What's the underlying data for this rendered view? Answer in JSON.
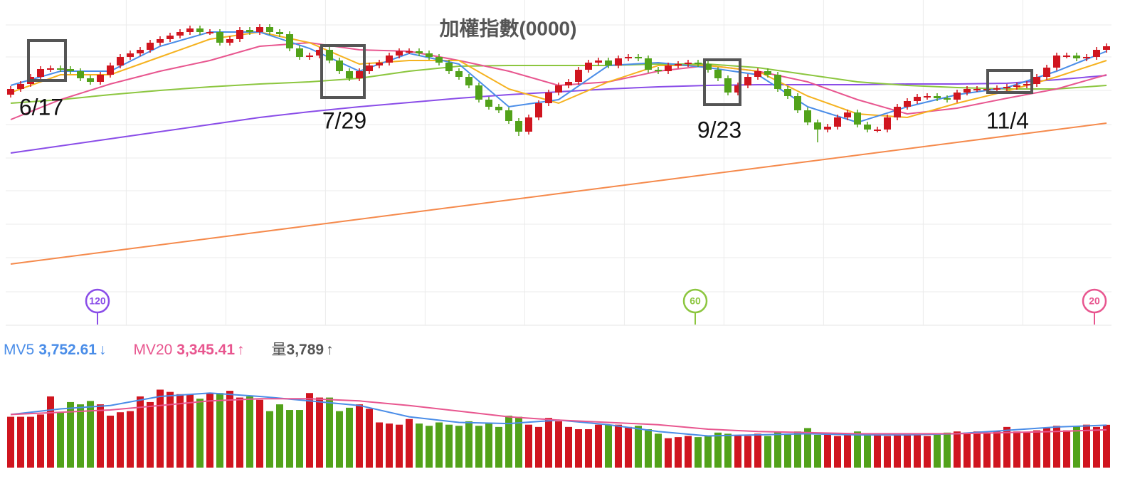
{
  "chart_data": [
    {
      "type": "candlestick",
      "title": "加權指數(0000)",
      "open": [
        322,
        330,
        337,
        347,
        358,
        359,
        358,
        355,
        345,
        340,
        350,
        363,
        375,
        380,
        385,
        395,
        400,
        405,
        410,
        415,
        410,
        410,
        395,
        400,
        413,
        410,
        417,
        410,
        407,
        387,
        375,
        377,
        385,
        370,
        355,
        345,
        355,
        363,
        367,
        377,
        383,
        383,
        380,
        375,
        367,
        355,
        347,
        335,
        315,
        305,
        300,
        285,
        270,
        290,
        310,
        325,
        335,
        340,
        357,
        367,
        370,
        363,
        373,
        375,
        373,
        357,
        355,
        363,
        365,
        367,
        365,
        357,
        345,
        325,
        335,
        347,
        355,
        350,
        330,
        320,
        300,
        283,
        273,
        277,
        290,
        297,
        280,
        273,
        273,
        290,
        305,
        313,
        319,
        320,
        317,
        315,
        325,
        330,
        330,
        330,
        331,
        333,
        335,
        337,
        347,
        360,
        377,
        377,
        373,
        375,
        385
      ],
      "high": [
        334,
        341,
        351,
        362,
        363,
        363,
        362,
        359,
        349,
        354,
        367,
        379,
        384,
        389,
        399,
        404,
        409,
        414,
        419,
        419,
        414,
        414,
        404,
        417,
        417,
        421,
        421,
        414,
        411,
        391,
        381,
        389,
        389,
        374,
        359,
        359,
        367,
        371,
        381,
        387,
        387,
        387,
        384,
        379,
        371,
        359,
        351,
        339,
        319,
        309,
        304,
        289,
        294,
        314,
        329,
        339,
        344,
        361,
        371,
        374,
        374,
        377,
        379,
        379,
        377,
        361,
        367,
        369,
        371,
        371,
        369,
        361,
        349,
        339,
        351,
        359,
        359,
        354,
        334,
        324,
        304,
        287,
        281,
        294,
        301,
        301,
        284,
        277,
        294,
        309,
        317,
        323,
        324,
        324,
        321,
        329,
        334,
        334,
        334,
        335,
        337,
        339,
        341,
        351,
        364,
        381,
        381,
        381,
        379,
        389,
        394
      ],
      "low": [
        318,
        326,
        333,
        343,
        354,
        354,
        351,
        341,
        336,
        336,
        346,
        359,
        371,
        376,
        381,
        391,
        396,
        401,
        406,
        406,
        406,
        391,
        391,
        396,
        406,
        406,
        406,
        403,
        383,
        371,
        371,
        373,
        366,
        351,
        341,
        341,
        351,
        359,
        363,
        373,
        379,
        376,
        371,
        363,
        351,
        343,
        331,
        311,
        301,
        296,
        281,
        264,
        266,
        286,
        306,
        321,
        331,
        336,
        353,
        363,
        359,
        359,
        369,
        369,
        353,
        351,
        351,
        359,
        361,
        361,
        353,
        341,
        321,
        321,
        331,
        343,
        346,
        326,
        316,
        296,
        279,
        255,
        269,
        273,
        286,
        276,
        269,
        269,
        269,
        286,
        301,
        309,
        315,
        313,
        311,
        311,
        321,
        326,
        326,
        326,
        327,
        329,
        331,
        333,
        343,
        356,
        373,
        369,
        369,
        371,
        381
      ],
      "close": [
        330,
        337,
        347,
        358,
        359,
        358,
        355,
        345,
        340,
        350,
        363,
        375,
        380,
        385,
        395,
        400,
        405,
        410,
        415,
        410,
        410,
        395,
        400,
        413,
        410,
        417,
        410,
        407,
        387,
        375,
        377,
        385,
        370,
        355,
        345,
        355,
        363,
        367,
        377,
        383,
        383,
        380,
        375,
        367,
        355,
        347,
        335,
        315,
        305,
        300,
        285,
        270,
        290,
        310,
        325,
        335,
        340,
        357,
        367,
        370,
        363,
        373,
        375,
        373,
        357,
        355,
        363,
        365,
        367,
        365,
        357,
        345,
        325,
        335,
        347,
        355,
        350,
        330,
        320,
        300,
        283,
        273,
        277,
        290,
        297,
        280,
        273,
        273,
        290,
        305,
        313,
        319,
        320,
        317,
        315,
        325,
        330,
        330,
        330,
        331,
        333,
        335,
        337,
        347,
        360,
        377,
        377,
        373,
        375,
        385,
        390
      ],
      "up_color": "#d0151f",
      "down_color": "#52a21a",
      "xlim": [
        -0.5,
        110.5
      ],
      "ylim": [
        0,
        455
      ],
      "ygrid": [
        420,
        375,
        328,
        280,
        233,
        187,
        140,
        93,
        45
      ],
      "xgrid": [
        11.6,
        21.6,
        31.6,
        41.6,
        51.6,
        61.6,
        71.6,
        81.6,
        91.6,
        101.6
      ],
      "ma_x": [
        0,
        5,
        10,
        15,
        20,
        25,
        30,
        35,
        40,
        45,
        50,
        55,
        60,
        65,
        70,
        75,
        80,
        85,
        90,
        95,
        100,
        105,
        110
      ],
      "series": [
        {
          "color": "#f58a4c",
          "values": [
            84,
            93,
            102,
            111,
            120,
            129,
            138,
            147,
            156,
            165,
            174,
            183,
            192,
            201,
            210,
            219,
            228,
            237,
            246,
            255,
            264,
            273,
            282
          ]
        },
        {
          "color": "#8a4de8",
          "values": [
            240,
            250,
            260,
            270,
            280,
            290,
            298,
            305,
            311,
            317,
            322,
            326,
            330,
            333,
            335,
            336,
            336,
            336,
            337,
            337,
            338,
            343,
            349
          ]
        },
        {
          "color": "#8cc63f",
          "values": [
            310,
            315,
            322,
            328,
            333,
            337,
            340,
            345,
            355,
            362,
            363,
            363,
            363,
            365,
            365,
            360,
            350,
            340,
            335,
            332,
            330,
            330,
            335
          ]
        },
        {
          "color": "#e8568f",
          "values": [
            287,
            315,
            337,
            355,
            370,
            390,
            395,
            385,
            383,
            370,
            355,
            335,
            340,
            355,
            363,
            355,
            340,
            315,
            295,
            303,
            317,
            330,
            350
          ]
        },
        {
          "color": "#f5b21f",
          "values": [
            325,
            350,
            350,
            375,
            400,
            410,
            395,
            365,
            370,
            370,
            330,
            310,
            340,
            363,
            363,
            355,
            320,
            295,
            290,
            310,
            327,
            347,
            370
          ]
        },
        {
          "color": "#4a8de8",
          "values": [
            335,
            355,
            355,
            390,
            410,
            410,
            387,
            355,
            380,
            365,
            305,
            315,
            363,
            367,
            360,
            350,
            305,
            283,
            305,
            322,
            332,
            355,
            383
          ]
        }
      ],
      "annotations": [
        "6/17",
        "7/29",
        "9/23",
        "11/4"
      ],
      "period_markers": [
        {
          "label": 120,
          "color": "#8a4de8"
        },
        {
          "label": 60,
          "color": "#8cc63f"
        },
        {
          "label": 20,
          "color": "#e8568f"
        }
      ]
    },
    {
      "type": "volume",
      "values": [
        4500,
        4500,
        4500,
        4700,
        6300,
        4900,
        5800,
        5600,
        5900,
        5600,
        4600,
        4900,
        5000,
        6300,
        5800,
        6900,
        6700,
        6500,
        6500,
        6100,
        6600,
        6600,
        6800,
        6200,
        6300,
        6000,
        5000,
        5600,
        5100,
        5100,
        6600,
        6200,
        6200,
        5000,
        5300,
        5600,
        5200,
        4000,
        3900,
        3800,
        4300,
        3900,
        3700,
        4000,
        3800,
        3700,
        4100,
        3700,
        3900,
        3600,
        4600,
        4500,
        3800,
        3600,
        4400,
        4100,
        3600,
        3400,
        3400,
        3800,
        3800,
        3800,
        3600,
        3700,
        3400,
        3000,
        2600,
        2700,
        2800,
        2700,
        2800,
        3100,
        3000,
        2900,
        2800,
        3000,
        2800,
        3200,
        3000,
        3200,
        3500,
        2900,
        3000,
        2800,
        2900,
        3200,
        3000,
        3000,
        2800,
        3000,
        3000,
        2900,
        2800,
        3000,
        3100,
        3200,
        3100,
        3200,
        3100,
        3200,
        3600,
        3200,
        3100,
        3300,
        3500,
        3700,
        3300,
        3700,
        3800,
        3600,
        3789
      ],
      "ylim": [
        0,
        8000
      ],
      "ma_x": [
        0,
        5,
        10,
        15,
        20,
        25,
        30,
        35,
        40,
        45,
        50,
        55,
        60,
        65,
        70,
        75,
        80,
        85,
        90,
        95,
        100,
        105,
        110
      ],
      "series": [
        {
          "name": "MV5",
          "color": "#4a8de8",
          "values": [
            4700,
            5200,
            5500,
            6300,
            6600,
            6300,
            5900,
            5500,
            4500,
            4000,
            3900,
            4200,
            3800,
            3200,
            2800,
            2900,
            3000,
            2900,
            2900,
            3000,
            3300,
            3600,
            3753
          ]
        },
        {
          "name": "MV20",
          "color": "#e8568f",
          "values": [
            4700,
            4900,
            5100,
            5500,
            5900,
            6100,
            6100,
            5900,
            5500,
            5000,
            4500,
            4200,
            4000,
            3800,
            3400,
            3200,
            3100,
            3000,
            3000,
            3000,
            3100,
            3200,
            3345
          ]
        }
      ],
      "indicators": [
        {
          "name": "MV5",
          "value": {
            "value": 3752.61,
            "label": "3,752.61"
          },
          "arrow": "↓",
          "color": "#4a8de8"
        },
        {
          "name": "MV20",
          "value": {
            "value": 3345.41,
            "label": "3,345.41"
          },
          "arrow": "↑",
          "color": "#e8568f"
        },
        {
          "name": "量",
          "value": {
            "value": 3789,
            "label": "3,789"
          },
          "arrow": "↑",
          "color": "#555555"
        }
      ]
    }
  ]
}
